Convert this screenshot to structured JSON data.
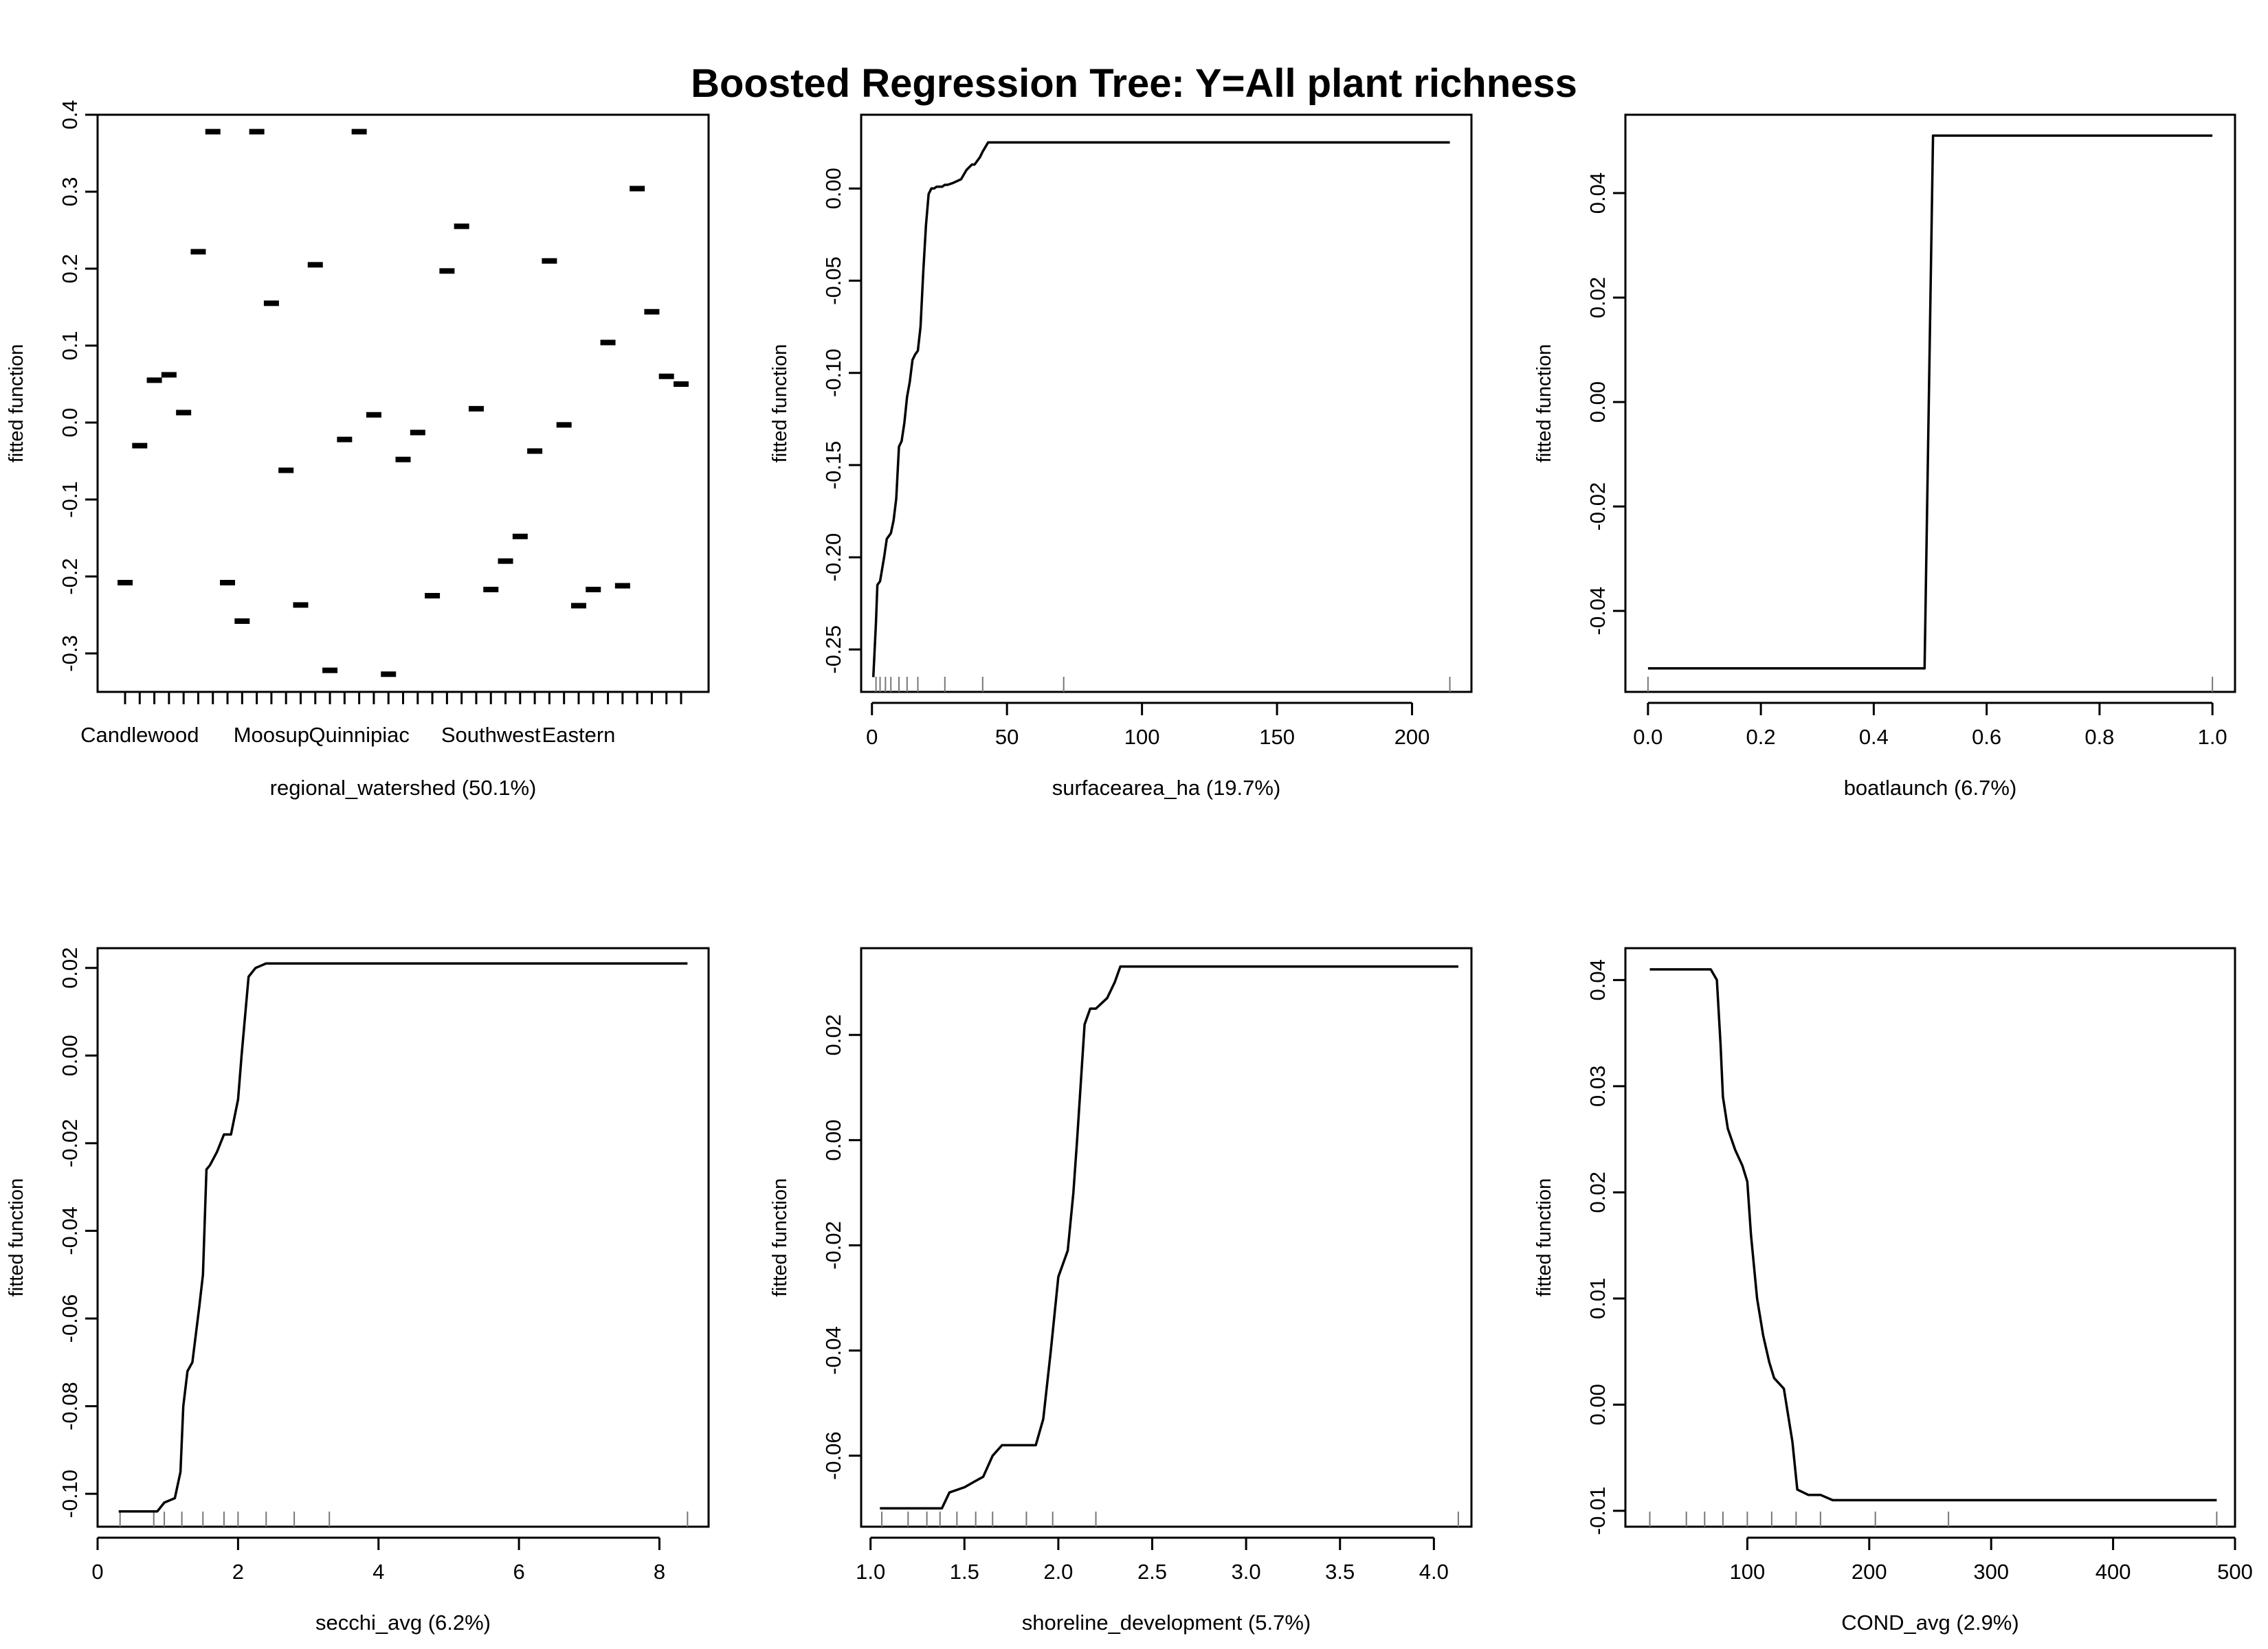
{
  "title": "Boosted Regression Tree: Y=All plant richness",
  "chart_data": [
    {
      "type": "scatter",
      "mark": "dash",
      "xlabel": "regional_watershed  (50.1%)",
      "ylabel": "fitted function",
      "ylim": [
        -0.35,
        0.4
      ],
      "yticks": [
        -0.3,
        -0.2,
        -0.1,
        0.0,
        0.1,
        0.2,
        0.3,
        0.4
      ],
      "ytick_labels": [
        "-0.3",
        "-0.2",
        "-0.1",
        "0.0",
        "0.1",
        "0.2",
        "0.3",
        "0.4"
      ],
      "category_labels": [
        "Candlewood",
        "Moosup",
        "Quinnipiac",
        "Southwest",
        "Eastern"
      ],
      "category_label_positions": [
        1,
        10,
        16,
        25,
        31
      ],
      "n_categories": 39,
      "values": [
        -0.208,
        -0.03,
        0.055,
        0.062,
        0.013,
        0.222,
        0.378,
        -0.208,
        -0.258,
        0.378,
        0.155,
        -0.062,
        -0.237,
        0.205,
        -0.322,
        -0.022,
        0.378,
        0.01,
        -0.327,
        -0.048,
        -0.013,
        -0.225,
        0.197,
        0.255,
        0.018,
        -0.217,
        -0.18,
        -0.148,
        -0.037,
        0.21,
        -0.003,
        -0.238,
        -0.217,
        0.104,
        -0.212,
        0.304,
        0.144,
        0.06,
        0.05
      ],
      "grid": false
    },
    {
      "type": "line",
      "mark": "step",
      "xlabel": "surfacearea_ha  (19.7%)",
      "ylabel": "fitted function",
      "xlim": [
        -4,
        222
      ],
      "ylim": [
        -0.273,
        0.04
      ],
      "xticks": [
        0,
        50,
        100,
        150,
        200
      ],
      "xtick_labels": [
        "0",
        "50",
        "100",
        "150",
        "200"
      ],
      "yticks": [
        -0.25,
        -0.2,
        -0.15,
        -0.1,
        -0.05,
        0.0
      ],
      "ytick_labels": [
        "-0.25",
        "-0.20",
        "-0.15",
        "-0.10",
        "-0.05",
        "0.00"
      ],
      "x": [
        0.5,
        1.5,
        2,
        3,
        4.5,
        5.5,
        7,
        8,
        9,
        10,
        11,
        12,
        13,
        14,
        15,
        16,
        17,
        18,
        19,
        20,
        21,
        22,
        23,
        24,
        25,
        26,
        27,
        28,
        30,
        33,
        35,
        37,
        38,
        40,
        41,
        43,
        45,
        48,
        214
      ],
      "y": [
        -0.265,
        -0.235,
        -0.215,
        -0.213,
        -0.2,
        -0.19,
        -0.187,
        -0.18,
        -0.168,
        -0.14,
        -0.137,
        -0.127,
        -0.113,
        -0.105,
        -0.093,
        -0.09,
        -0.088,
        -0.075,
        -0.045,
        -0.02,
        -0.003,
        0.0,
        0.0,
        0.001,
        0.001,
        0.001,
        0.002,
        0.002,
        0.003,
        0.005,
        0.01,
        0.013,
        0.013,
        0.017,
        0.02,
        0.025,
        0.025,
        0.025,
        0.025
      ],
      "rug": [
        1.5,
        3,
        5,
        7,
        10,
        13,
        17,
        27,
        41,
        71,
        214
      ],
      "grid": false
    },
    {
      "type": "line",
      "mark": "step",
      "xlabel": "boatlaunch  (6.7%)",
      "ylabel": "fitted function",
      "xlim": [
        -0.04,
        1.04
      ],
      "ylim": [
        -0.0555,
        0.055
      ],
      "xticks": [
        0.0,
        0.2,
        0.4,
        0.6,
        0.8,
        1.0
      ],
      "xtick_labels": [
        "0.0",
        "0.2",
        "0.4",
        "0.6",
        "0.8",
        "1.0"
      ],
      "yticks": [
        -0.04,
        -0.02,
        0.0,
        0.02,
        0.04
      ],
      "ytick_labels": [
        "-0.04",
        "-0.02",
        "0.00",
        "0.02",
        "0.04"
      ],
      "x": [
        0.0,
        0.49,
        0.505,
        1.0
      ],
      "y": [
        -0.051,
        -0.051,
        0.051,
        0.051
      ],
      "rug": [
        0.0,
        1.0
      ],
      "grid": false
    },
    {
      "type": "line",
      "mark": "step",
      "xlabel": "secchi_avg  (6.2%)",
      "ylabel": "fitted function",
      "xlim": [
        0.0,
        8.7
      ],
      "ylim": [
        -0.1075,
        0.0245
      ],
      "xticks": [
        0,
        2,
        4,
        6,
        8
      ],
      "xtick_labels": [
        "0",
        "2",
        "4",
        "6",
        "8"
      ],
      "yticks": [
        -0.1,
        -0.08,
        -0.06,
        -0.04,
        -0.02,
        0.0,
        0.02
      ],
      "ytick_labels": [
        "-0.10",
        "-0.08",
        "-0.06",
        "-0.04",
        "-0.02",
        "0.00",
        "0.02"
      ],
      "x": [
        0.3,
        0.85,
        0.95,
        1.1,
        1.18,
        1.22,
        1.28,
        1.35,
        1.45,
        1.5,
        1.55,
        1.6,
        1.7,
        1.8,
        1.9,
        2.0,
        2.05,
        2.1,
        2.15,
        2.25,
        2.4,
        8.4
      ],
      "y": [
        -0.104,
        -0.104,
        -0.102,
        -0.101,
        -0.095,
        -0.08,
        -0.072,
        -0.07,
        -0.057,
        -0.05,
        -0.026,
        -0.025,
        -0.022,
        -0.018,
        -0.018,
        -0.01,
        0.0,
        0.009,
        0.018,
        0.02,
        0.021,
        0.021
      ],
      "rug": [
        0.32,
        0.8,
        0.95,
        1.2,
        1.5,
        1.8,
        2.0,
        2.4,
        2.8,
        3.3,
        8.4
      ],
      "grid": false
    },
    {
      "type": "line",
      "mark": "step",
      "xlabel": "shoreline_development  (5.7%)",
      "ylabel": "fitted function",
      "xlim": [
        0.95,
        4.2
      ],
      "ylim": [
        -0.0735,
        0.0365
      ],
      "xticks": [
        1.0,
        1.5,
        2.0,
        2.5,
        3.0,
        3.5,
        4.0
      ],
      "xtick_labels": [
        "1.0",
        "1.5",
        "2.0",
        "2.5",
        "3.0",
        "3.5",
        "4.0"
      ],
      "yticks": [
        -0.06,
        -0.04,
        -0.02,
        0.0,
        0.02
      ],
      "ytick_labels": [
        "-0.06",
        "-0.04",
        "-0.02",
        "0.00",
        "0.02"
      ],
      "x": [
        1.05,
        1.38,
        1.42,
        1.5,
        1.55,
        1.6,
        1.65,
        1.7,
        1.88,
        1.92,
        1.96,
        2.0,
        2.05,
        2.08,
        2.1,
        2.14,
        2.17,
        2.2,
        2.26,
        2.3,
        2.33,
        4.13
      ],
      "y": [
        -0.07,
        -0.07,
        -0.067,
        -0.066,
        -0.065,
        -0.064,
        -0.06,
        -0.058,
        -0.058,
        -0.053,
        -0.04,
        -0.026,
        -0.021,
        -0.01,
        0.0,
        0.022,
        0.025,
        0.025,
        0.027,
        0.03,
        0.033,
        0.033
      ],
      "rug": [
        1.06,
        1.2,
        1.3,
        1.37,
        1.46,
        1.56,
        1.65,
        1.83,
        1.97,
        2.2,
        4.13
      ],
      "grid": false
    },
    {
      "type": "line",
      "mark": "step",
      "xlabel": "COND_avg  (2.9%)",
      "ylabel": "fitted function",
      "xlim": [
        0,
        500
      ],
      "ylim": [
        -0.0115,
        0.043
      ],
      "xticks": [
        100,
        200,
        300,
        400,
        500
      ],
      "xtick_labels": [
        "100",
        "200",
        "300",
        "400",
        "500"
      ],
      "yticks": [
        -0.01,
        0.0,
        0.01,
        0.02,
        0.03,
        0.04
      ],
      "ytick_labels": [
        "-0.01",
        "0.00",
        "0.01",
        "0.02",
        "0.03",
        "0.04"
      ],
      "x": [
        20,
        70,
        75,
        78,
        80,
        84,
        90,
        96,
        100,
        103,
        108,
        113,
        118,
        122,
        130,
        137,
        141,
        150,
        160,
        170,
        485
      ],
      "y": [
        0.041,
        0.041,
        0.04,
        0.034,
        0.029,
        0.026,
        0.024,
        0.0225,
        0.021,
        0.016,
        0.01,
        0.0065,
        0.004,
        0.0025,
        0.0015,
        -0.0035,
        -0.008,
        -0.0085,
        -0.0085,
        -0.009,
        -0.009
      ],
      "rug": [
        20,
        50,
        65,
        80,
        100,
        120,
        140,
        160,
        205,
        265,
        485
      ],
      "grid": false
    }
  ]
}
